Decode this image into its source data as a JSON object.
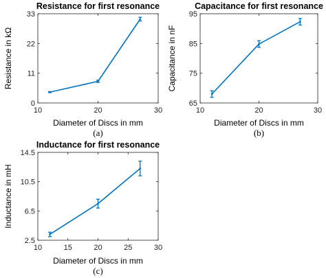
{
  "chart_data": [
    {
      "type": "line",
      "panel": "(a)",
      "title": "Resistance for first resonance",
      "xlabel": "Diameter of Discs in mm",
      "ylabel": "Resistance in kΩ",
      "xlim": [
        10,
        30
      ],
      "ylim": [
        0,
        33
      ],
      "xticks": [
        10,
        20,
        30
      ],
      "yticks": [
        0,
        11,
        22,
        33
      ],
      "x": [
        12,
        20,
        27
      ],
      "values": [
        4.0,
        8.0,
        31.0
      ],
      "errors": [
        0.2,
        0.4,
        0.7
      ]
    },
    {
      "type": "line",
      "panel": "(b)",
      "title": "Capacitance for first resonance",
      "xlabel": "Diameter of Discs in mm",
      "ylabel": "Capacitance in nF",
      "xlim": [
        10,
        30
      ],
      "ylim": [
        65,
        95
      ],
      "xticks": [
        10,
        20,
        30
      ],
      "yticks": [
        65,
        75,
        85,
        95
      ],
      "x": [
        12,
        20,
        27
      ],
      "values": [
        68.0,
        84.8,
        92.3
      ],
      "errors": [
        1.1,
        1.1,
        1.1
      ]
    },
    {
      "type": "line",
      "panel": "(c)",
      "title": "Inductance for first resonance",
      "xlabel": "Diameter of Discs in mm",
      "ylabel": "Inductance in mH",
      "xlim": [
        10,
        30
      ],
      "ylim": [
        2.5,
        14.5
      ],
      "xticks": [
        10,
        15,
        20,
        25,
        30
      ],
      "yticks": [
        2.5,
        6.5,
        10.5,
        14.5
      ],
      "x": [
        12,
        20,
        27
      ],
      "values": [
        3.3,
        7.5,
        12.3
      ],
      "errors": [
        0.3,
        0.6,
        1.0
      ]
    }
  ]
}
